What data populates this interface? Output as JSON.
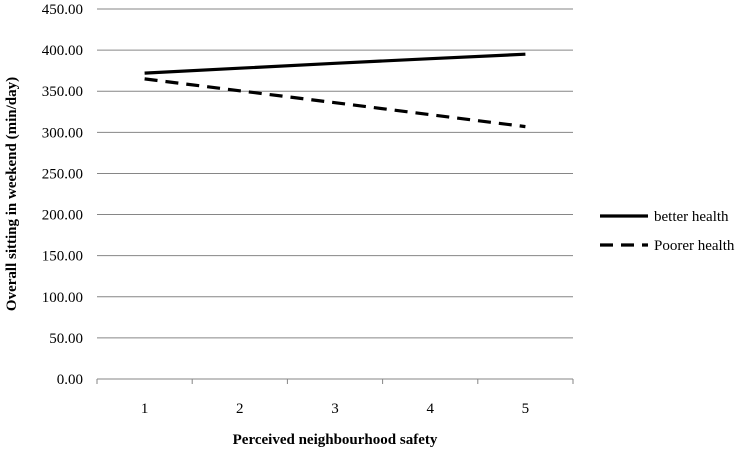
{
  "chart_data": {
    "type": "line",
    "title": "",
    "xlabel": "Perceived  neighbourhood safety",
    "ylabel": "Overall sitting in weekend (min/day)",
    "categories": [
      "1",
      "2",
      "3",
      "4",
      "5"
    ],
    "x": [
      1,
      2,
      3,
      4,
      5
    ],
    "ylim": [
      0,
      450
    ],
    "yticks": [
      "0.00",
      "50.00",
      "100.00",
      "150.00",
      "200.00",
      "250.00",
      "300.00",
      "350.00",
      "400.00",
      "450.00"
    ],
    "grid": true,
    "legend_position": "right",
    "series": [
      {
        "name": "better health",
        "style": "solid",
        "color": "#000000",
        "values": [
          372,
          378,
          384,
          389.5,
          395
        ]
      },
      {
        "name": "Poorer health",
        "style": "dashed",
        "color": "#000000",
        "values": [
          365,
          350.5,
          336,
          321.5,
          307
        ]
      }
    ]
  }
}
